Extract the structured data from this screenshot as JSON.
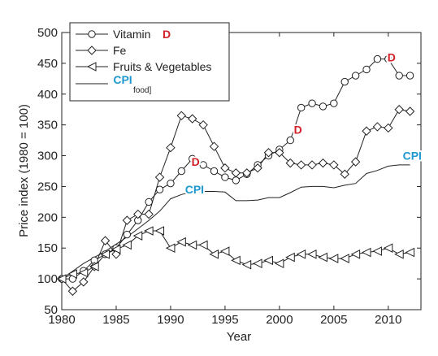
{
  "chart_data": {
    "type": "line",
    "xlabel": "Year",
    "ylabel": "Price index (1980 = 100)",
    "xlim": [
      1980,
      2013
    ],
    "ylim": [
      50,
      500
    ],
    "xticks": [
      1980,
      1985,
      1990,
      1995,
      2000,
      2005,
      2010
    ],
    "yticks": [
      50,
      100,
      150,
      200,
      250,
      300,
      350,
      400,
      450,
      500
    ],
    "legend_placement": "top-left",
    "series": [
      {
        "name": "Vitamin D",
        "name_text": "Vitamin",
        "name_tag": "D",
        "marker": "circle",
        "x": [
          1980,
          1981,
          1982,
          1983,
          1984,
          1985,
          1986,
          1987,
          1988,
          1989,
          1990,
          1991,
          1992,
          1993,
          1994,
          1995,
          1996,
          1997,
          1998,
          1999,
          2000,
          2001,
          2002,
          2003,
          2004,
          2005,
          2006,
          2007,
          2008,
          2009,
          2010,
          2011,
          2012
        ],
        "values": [
          100,
          100,
          113,
          130,
          140,
          150,
          172,
          195,
          225,
          245,
          255,
          275,
          295,
          285,
          275,
          265,
          260,
          270,
          285,
          300,
          310,
          325,
          378,
          385,
          380,
          385,
          420,
          430,
          440,
          457,
          457,
          430,
          430
        ]
      },
      {
        "name": "Fe",
        "marker": "diamond",
        "x": [
          1980,
          1981,
          1982,
          1983,
          1984,
          1985,
          1986,
          1987,
          1988,
          1989,
          1990,
          1991,
          1992,
          1993,
          1994,
          1995,
          1996,
          1997,
          1998,
          1999,
          2000,
          2001,
          2002,
          2003,
          2004,
          2005,
          2006,
          2007,
          2008,
          2009,
          2010,
          2011,
          2012
        ],
        "values": [
          100,
          80,
          95,
          120,
          162,
          140,
          195,
          205,
          205,
          265,
          313,
          365,
          360,
          350,
          315,
          280,
          272,
          272,
          280,
          305,
          305,
          288,
          285,
          285,
          288,
          285,
          270,
          290,
          340,
          347,
          345,
          375,
          372
        ]
      },
      {
        "name": "Fruits & Vegetables",
        "marker": "triangle-left",
        "x": [
          1980,
          1981,
          1982,
          1983,
          1984,
          1985,
          1986,
          1987,
          1988,
          1989,
          1990,
          1991,
          1992,
          1993,
          1994,
          1995,
          1996,
          1997,
          1998,
          1999,
          2000,
          2001,
          2002,
          2003,
          2004,
          2005,
          2006,
          2007,
          2008,
          2009,
          2010,
          2011,
          2012
        ],
        "values": [
          100,
          108,
          110,
          120,
          140,
          148,
          155,
          170,
          178,
          178,
          150,
          160,
          155,
          155,
          140,
          145,
          130,
          123,
          125,
          130,
          125,
          135,
          140,
          140,
          135,
          133,
          133,
          140,
          143,
          145,
          150,
          140,
          143
        ]
      },
      {
        "name": "CPI food",
        "name_text": "food]",
        "name_tag": "CPI",
        "marker": "none",
        "x": [
          1980,
          1982,
          1984,
          1986,
          1988,
          1989,
          1990,
          1991,
          1992,
          1993,
          1994,
          1995,
          1996,
          1997,
          1998,
          1999,
          2000,
          2001,
          2002,
          2003,
          2004,
          2005,
          2006,
          2007,
          2008,
          2009,
          2010,
          2011,
          2012
        ],
        "values": [
          100,
          125,
          145,
          168,
          195,
          210,
          230,
          237,
          241,
          242,
          242,
          241,
          227,
          227,
          228,
          232,
          232,
          240,
          249,
          250,
          250,
          248,
          252,
          255,
          271,
          276,
          283,
          285,
          285
        ]
      }
    ],
    "annotations": [
      {
        "text": "D",
        "x": 1992.3,
        "y": 290,
        "color": "#d32027"
      },
      {
        "text": "CPI",
        "x": 1992.2,
        "y": 245,
        "color": "#1f97d0"
      },
      {
        "text": "D",
        "x": 2001.7,
        "y": 342,
        "color": "#d32027"
      },
      {
        "text": "CPI",
        "x": 2012.2,
        "y": 300,
        "color": "#1f97d0"
      },
      {
        "text": "D",
        "x": 2010.3,
        "y": 460,
        "color": "#d32027"
      }
    ]
  }
}
